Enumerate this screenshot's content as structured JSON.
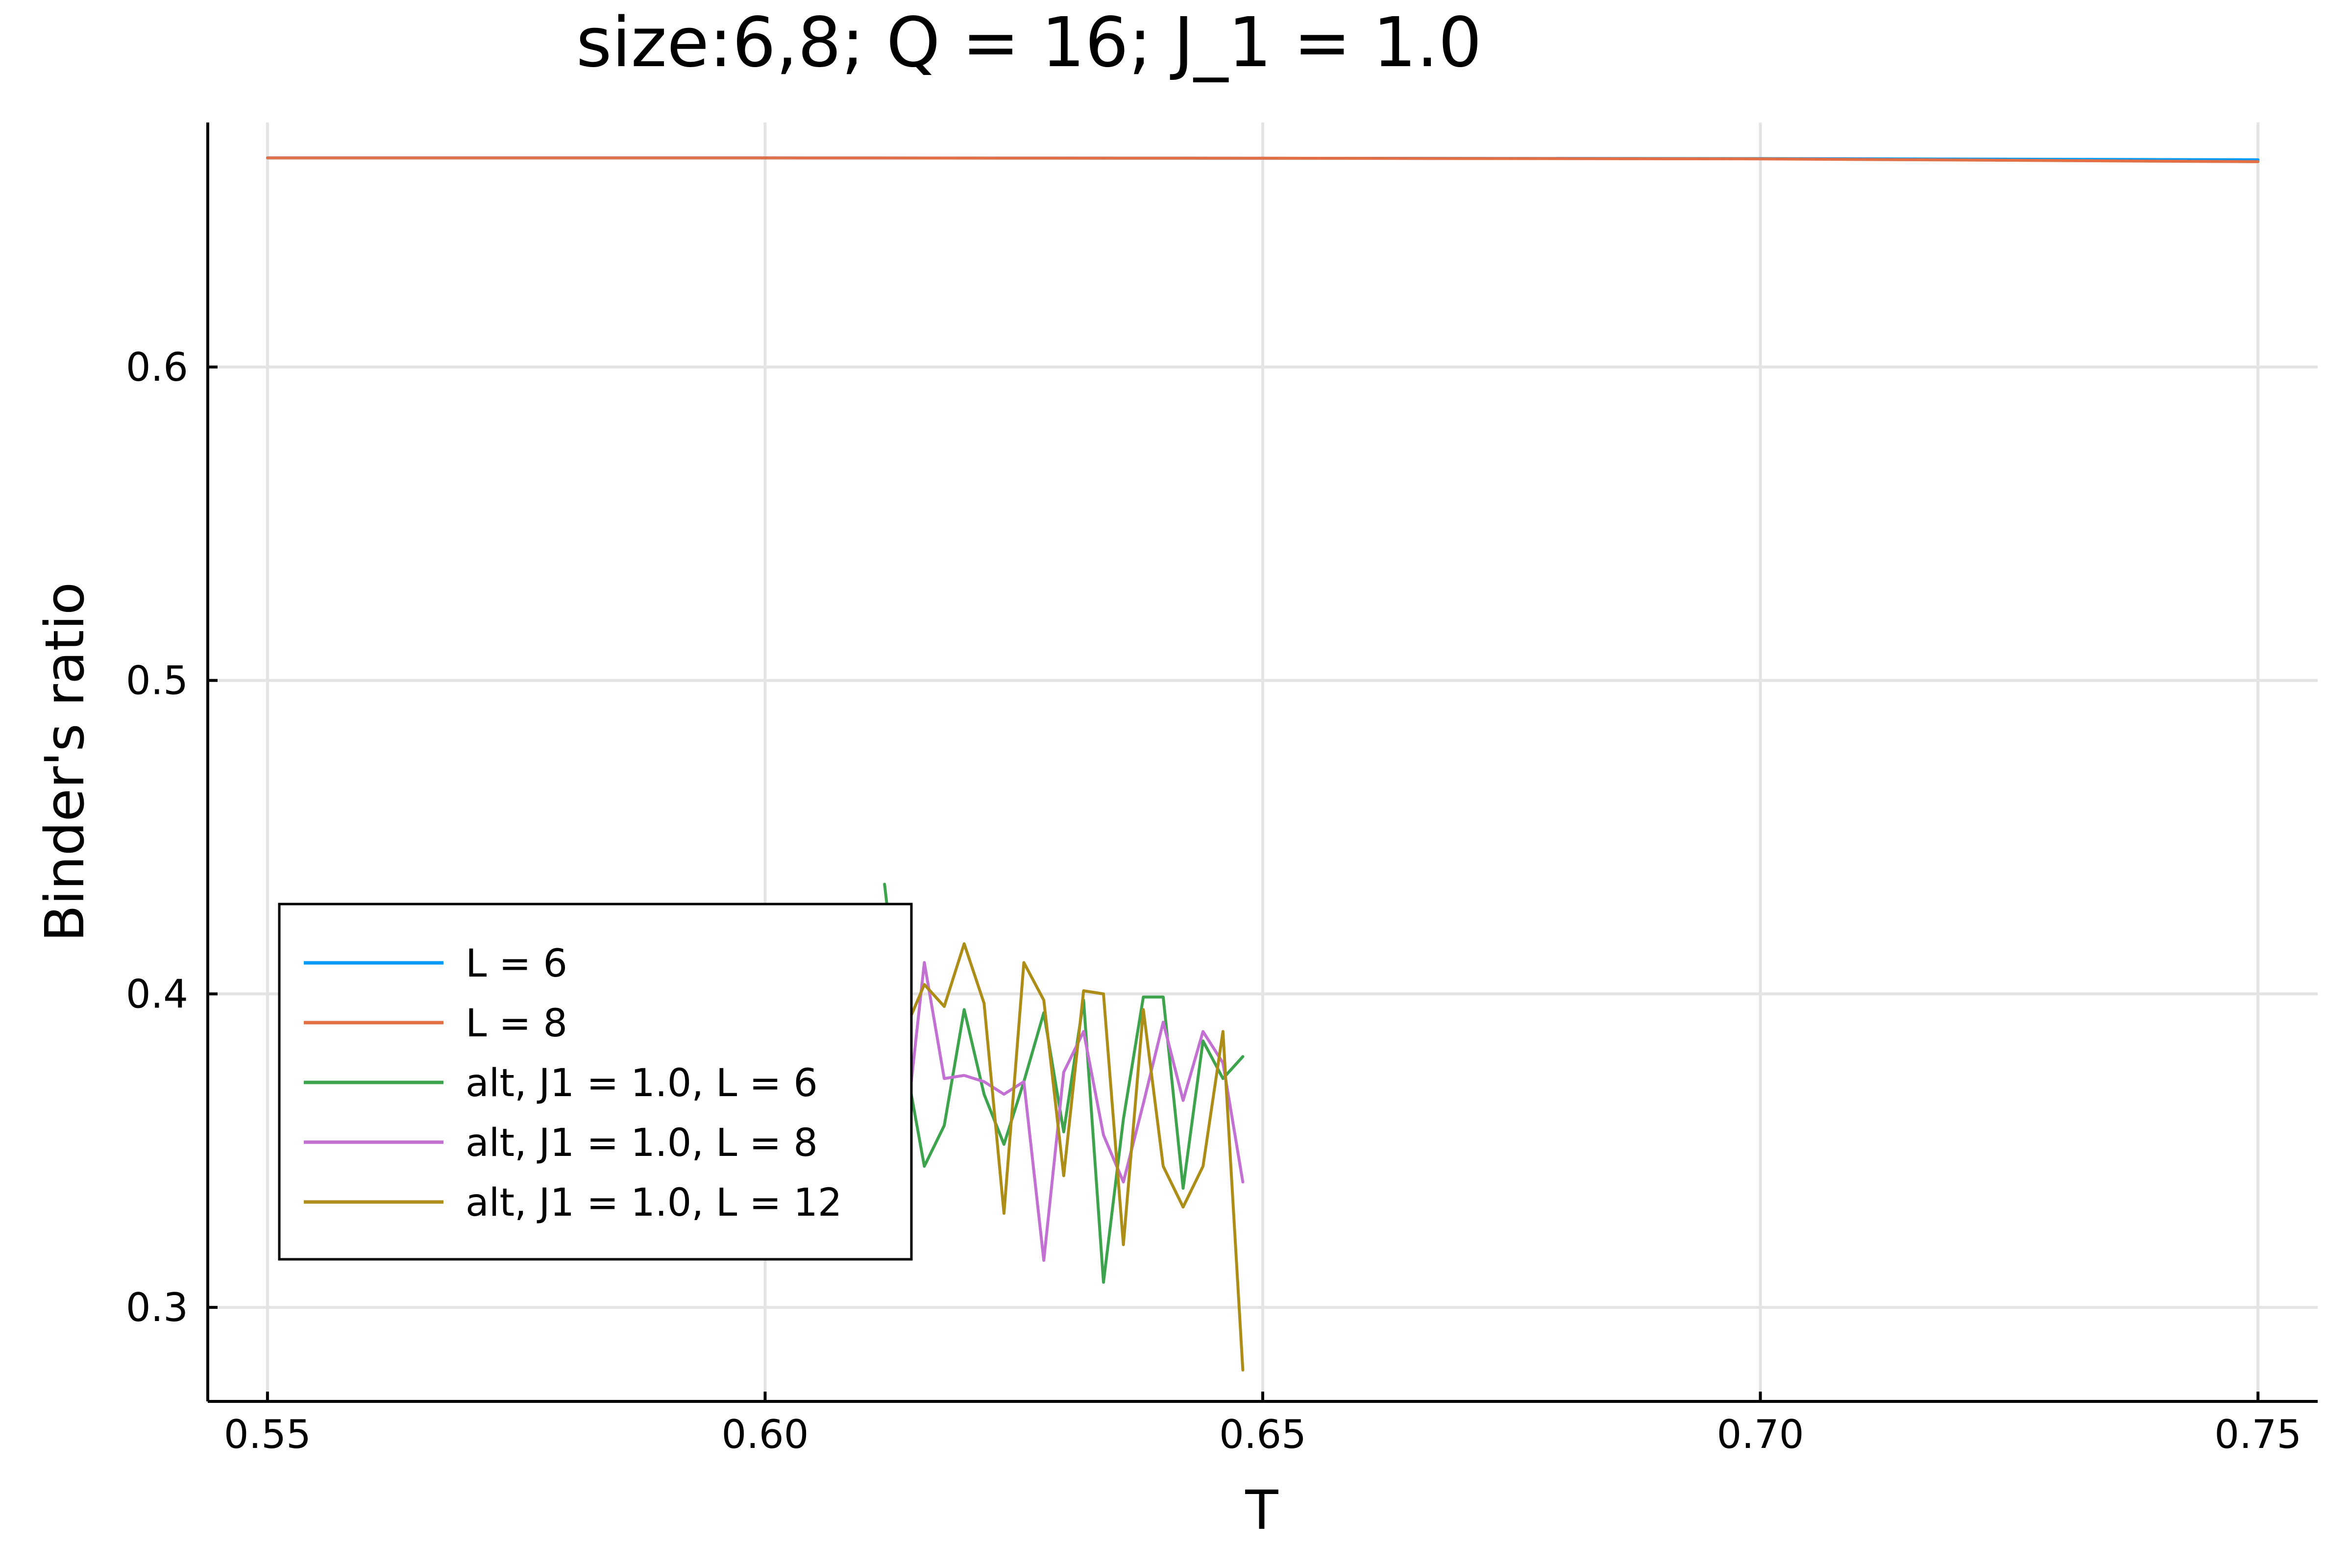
{
  "chart_data": {
    "type": "line",
    "title": "size:6,8; Q = 16; J_1 = 1.0",
    "xlabel": "T",
    "ylabel": "Binder's ratio",
    "xlim": [
      0.544,
      0.756
    ],
    "ylim": [
      0.27,
      0.678
    ],
    "xticks": [
      0.55,
      0.6,
      0.65,
      0.7,
      0.75
    ],
    "xtick_labels": [
      "0.55",
      "0.60",
      "0.65",
      "0.70",
      "0.75"
    ],
    "yticks": [
      0.3,
      0.4,
      0.5,
      0.6
    ],
    "ytick_labels": [
      "0.3",
      "0.4",
      "0.5",
      "0.6"
    ],
    "grid": true,
    "legend_position": "bottom-left",
    "series": [
      {
        "name": "L = 6",
        "color": "#009af9",
        "x": [
          0.55,
          0.6,
          0.65,
          0.7,
          0.75
        ],
        "y": [
          0.6667,
          0.6667,
          0.6666,
          0.6665,
          0.6661
        ]
      },
      {
        "name": "L = 8",
        "color": "#e26f46",
        "x": [
          0.55,
          0.6,
          0.65,
          0.7,
          0.75
        ],
        "y": [
          0.6667,
          0.6667,
          0.6666,
          0.6664,
          0.6655
        ]
      },
      {
        "name": "alt, J1 = 1.0, L = 6",
        "color": "#3da44d",
        "x": [
          0.612,
          0.614,
          0.616,
          0.618,
          0.62,
          0.622,
          0.624,
          0.626,
          0.628,
          0.63,
          0.632,
          0.634,
          0.636,
          0.638,
          0.64,
          0.642,
          0.644,
          0.646,
          0.648
        ],
        "y": [
          0.435,
          0.38,
          0.345,
          0.358,
          0.395,
          0.368,
          0.352,
          0.372,
          0.394,
          0.356,
          0.398,
          0.308,
          0.36,
          0.399,
          0.399,
          0.338,
          0.385,
          0.373,
          0.38
        ]
      },
      {
        "name": "alt, J1 = 1.0, L = 8",
        "color": "#c271d2",
        "x": [
          0.612,
          0.614,
          0.616,
          0.618,
          0.62,
          0.622,
          0.624,
          0.626,
          0.628,
          0.63,
          0.632,
          0.634,
          0.636,
          0.638,
          0.64,
          0.642,
          0.644,
          0.646,
          0.648
        ],
        "y": [
          0.38,
          0.352,
          0.41,
          0.373,
          0.374,
          0.372,
          0.368,
          0.372,
          0.315,
          0.375,
          0.388,
          0.355,
          0.34,
          0.365,
          0.391,
          0.366,
          0.388,
          0.378,
          0.34
        ]
      },
      {
        "name": "alt, J1 = 1.0, L = 12",
        "color": "#ac8d18",
        "x": [
          0.612,
          0.614,
          0.616,
          0.618,
          0.62,
          0.622,
          0.624,
          0.626,
          0.628,
          0.63,
          0.632,
          0.634,
          0.636,
          0.638,
          0.64,
          0.642,
          0.644,
          0.646,
          0.648
        ],
        "y": [
          0.37,
          0.388,
          0.403,
          0.396,
          0.416,
          0.397,
          0.33,
          0.41,
          0.398,
          0.342,
          0.401,
          0.4,
          0.32,
          0.395,
          0.345,
          0.332,
          0.345,
          0.388,
          0.28
        ]
      }
    ]
  }
}
